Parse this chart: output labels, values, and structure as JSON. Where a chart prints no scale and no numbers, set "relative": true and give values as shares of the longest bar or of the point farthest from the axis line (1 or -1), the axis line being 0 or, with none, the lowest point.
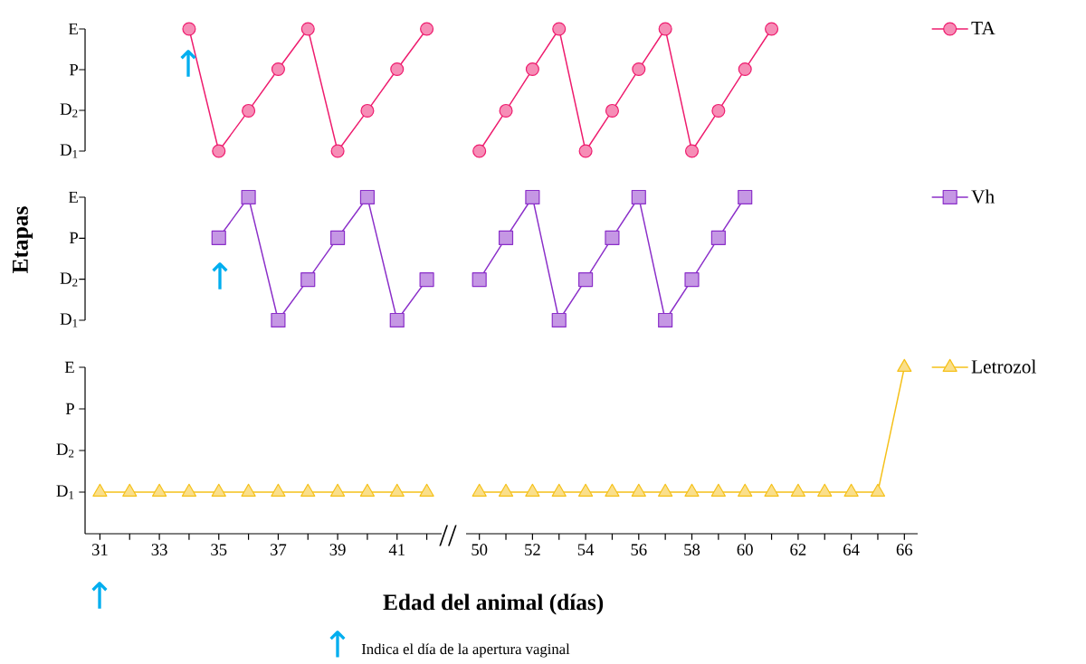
{
  "chart_data": [
    {
      "type": "line",
      "relative": true,
      "x": [
        34,
        35,
        36,
        37,
        38,
        39,
        40,
        41,
        42
      ],
      "tick_labels": false,
      "series": [
        {
          "color": "#ee1c6e",
          "marker": "circle",
          "values": [
            1,
            0,
            0.33,
            0.67,
            1,
            0,
            0.33,
            0.67,
            1
          ]
        }
      ]
    },
    {
      "type": "line",
      "relative": true,
      "x": [
        50,
        51,
        52,
        53,
        54,
        55,
        56,
        57,
        58,
        59,
        60,
        61
      ],
      "tick_labels": false,
      "legend": "right",
      "series": [
        {
          "name": "TA",
          "color": "#ee1c6e",
          "marker": "circle",
          "values": [
            0,
            0.33,
            0.67,
            1,
            0,
            0.33,
            0.67,
            1,
            0,
            0.33,
            0.67,
            1
          ]
        }
      ]
    },
    {
      "type": "line",
      "relative": true,
      "x": [
        35,
        36,
        37,
        38,
        39,
        40,
        41,
        42
      ],
      "tick_labels": false,
      "ylabel": "Etapas",
      "series": [
        {
          "color": "#8b2fc9",
          "marker": "square",
          "values": [
            0.67,
            1,
            0,
            0.33,
            0.67,
            1,
            0,
            0.33
          ]
        }
      ]
    },
    {
      "type": "line",
      "relative": true,
      "x": [
        50,
        51,
        52,
        53,
        54,
        55,
        56,
        57,
        58,
        59,
        60
      ],
      "tick_labels": false,
      "legend": "right",
      "series": [
        {
          "name": "Vh",
          "color": "#8b2fc9",
          "marker": "square",
          "values": [
            0.33,
            0.67,
            1,
            0,
            0.33,
            0.67,
            1,
            0,
            0.33,
            0.67,
            1
          ]
        }
      ]
    },
    {
      "type": "line",
      "x": [
        31,
        32,
        33,
        34,
        35,
        36,
        37,
        38,
        39,
        40,
        41,
        42
      ],
      "xlim": [
        30.5,
        42.5
      ],
      "ylim": [
        0,
        4
      ],
      "xticks": [
        31,
        {
          "value": 32,
          "label": null
        },
        33,
        {
          "value": 34,
          "label": null
        },
        35,
        {
          "value": 36,
          "label": null
        },
        37,
        {
          "value": 38,
          "label": null
        },
        39,
        {
          "value": 40,
          "label": null
        },
        41,
        {
          "value": 42,
          "label": null
        }
      ],
      "yticks": [
        {
          "value": 1,
          "label": "D$_{1}$"
        },
        {
          "value": 2,
          "label": "D$_{2}$"
        },
        {
          "value": 3,
          "label": "P"
        },
        {
          "value": 4,
          "label": "E"
        }
      ],
      "xlabel": "Edad del animal (días)",
      "series": [
        {
          "color": "#f5c018",
          "marker": "triangle",
          "values": [
            1,
            1,
            1,
            1,
            1,
            1,
            1,
            1,
            1,
            1,
            1,
            1
          ]
        }
      ]
    },
    {
      "type": "line",
      "x": [
        50,
        51,
        52,
        53,
        54,
        55,
        56,
        57,
        58,
        59,
        60,
        61,
        62,
        63,
        64,
        65,
        66
      ],
      "xlim": [
        49.5,
        66.5
      ],
      "ylim": [
        0,
        4
      ],
      "xticks": [
        50,
        {
          "value": 51,
          "label": null
        },
        52,
        {
          "value": 53,
          "label": null
        },
        54,
        {
          "value": 55,
          "label": null
        },
        56,
        {
          "value": 57,
          "label": null
        },
        58,
        {
          "value": 59,
          "label": null
        },
        60,
        {
          "value": 61,
          "label": null
        },
        62,
        {
          "value": 63,
          "label": null
        },
        64,
        {
          "value": 65,
          "label": null
        },
        66
      ],
      "tick_labels": "x",
      "legend": "right",
      "series": [
        {
          "name": "Letrozol",
          "color": "#f5c018",
          "marker": "triangle",
          "values": [
            1,
            1,
            1,
            1,
            1,
            1,
            1,
            1,
            1,
            1,
            1,
            1,
            1,
            1,
            1,
            1,
            4
          ]
        }
      ],
      "annotations": [
        "E",
        "P",
        "D$_{2}$",
        "D$_{1}$",
        "↑",
        "E",
        "P",
        "D$_{2}$",
        "D$_{1}$",
        "↑",
        "↑",
        "//",
        "↑",
        "Indica el día de la apertura vaginal"
      ]
    }
  ]
}
